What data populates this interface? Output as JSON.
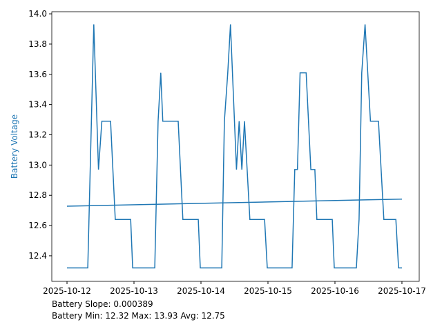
{
  "chart_data": {
    "type": "line",
    "ylabel": "Battery Voltage",
    "ylabel_color": "#1f77b4",
    "annotations": [
      "Battery Slope: 0.000389",
      "Battery Min: 12.32 Max: 13.93 Avg: 12.75"
    ],
    "series": [
      {
        "color": "#1f77b4",
        "x": [
          0,
          0.31,
          0.4,
          0.47,
          0.52,
          0.65,
          0.72,
          0.95,
          0.98,
          1.31,
          1.36,
          1.4,
          1.43,
          1.66,
          1.73,
          1.96,
          1.99,
          2.31,
          2.35,
          2.4,
          2.44,
          2.53,
          2.57,
          2.61,
          2.65,
          2.73,
          2.95,
          2.99,
          3.36,
          3.4,
          3.44,
          3.48,
          3.57,
          3.64,
          3.7,
          3.73,
          3.96,
          3.99,
          4.32,
          4.36,
          4.4,
          4.45,
          4.53,
          4.65,
          4.73,
          4.91,
          4.95,
          5.0
        ],
        "values": [
          12.32,
          12.32,
          13.93,
          12.97,
          13.29,
          13.29,
          12.64,
          12.64,
          12.32,
          12.32,
          13.29,
          13.61,
          13.29,
          13.29,
          12.64,
          12.64,
          12.32,
          12.32,
          13.29,
          13.61,
          13.93,
          12.97,
          13.29,
          12.97,
          13.29,
          12.64,
          12.64,
          12.32,
          12.32,
          12.97,
          12.97,
          13.61,
          13.61,
          12.97,
          12.97,
          12.64,
          12.64,
          12.32,
          12.32,
          12.64,
          13.61,
          13.93,
          13.29,
          13.29,
          12.64,
          12.64,
          12.32,
          12.32
        ]
      },
      {
        "color": "#1f77b4",
        "x": [
          0,
          5.0
        ],
        "values": [
          12.728,
          12.775
        ]
      }
    ],
    "xlim": [
      -0.227,
      5.258
    ],
    "ylim": [
      12.231,
      14.014
    ],
    "xticks": [
      {
        "value": 0,
        "label": "2025-10-12"
      },
      {
        "value": 1,
        "label": "2025-10-13"
      },
      {
        "value": 2,
        "label": "2025-10-14"
      },
      {
        "value": 3,
        "label": "2025-10-15"
      },
      {
        "value": 4,
        "label": "2025-10-16"
      },
      {
        "value": 5,
        "label": "2025-10-17"
      }
    ],
    "yticks": [
      12.4,
      12.6,
      12.8,
      {
        "value": 13,
        "label": "13.0"
      },
      13.2,
      13.4,
      13.6,
      13.8,
      {
        "value": 14,
        "label": "14.0"
      }
    ]
  }
}
